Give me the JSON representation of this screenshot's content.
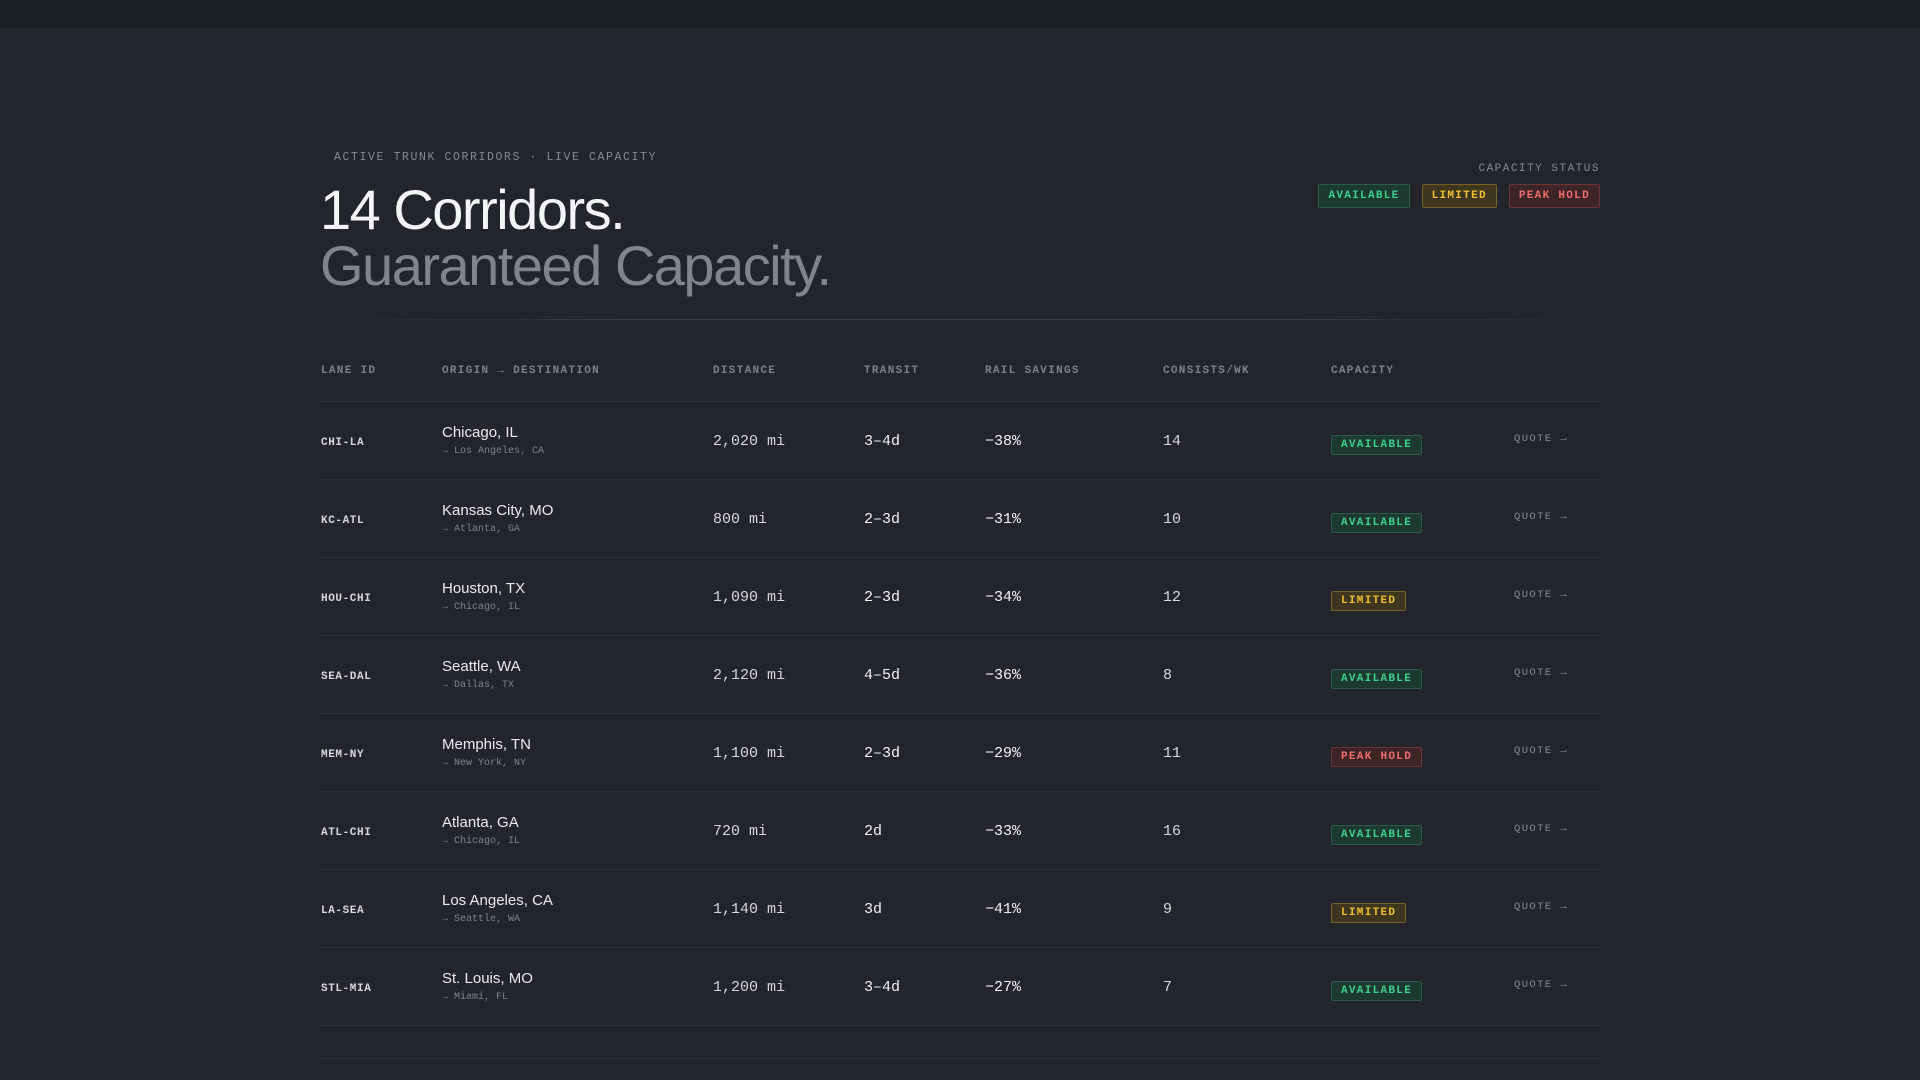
{
  "header": {
    "eyebrow": "ACTIVE TRUNK CORRIDORS · LIVE CAPACITY",
    "title_line1": "14 Corridors.",
    "title_line2": "Guaranteed Capacity.",
    "status_label": "CAPACITY STATUS",
    "legend": {
      "available": "AVAILABLE",
      "limited": "LIMITED",
      "peak_hold": "PEAK HOLD"
    }
  },
  "table": {
    "columns": {
      "lane_id": "LANE ID",
      "origin_destination": "ORIGIN → DESTINATION",
      "distance": "DISTANCE",
      "transit": "TRANSIT",
      "rail_savings": "RAIL SAVINGS",
      "consists": "CONSISTS/WK",
      "capacity": "CAPACITY"
    },
    "quote_label": "QUOTE →",
    "rows": [
      {
        "lane_id": "CHI-LA",
        "origin": "Chicago, IL",
        "destination": "→ Los Angeles, CA",
        "distance": "2,020 mi",
        "transit": "3–4d",
        "savings": "−38%",
        "consists": "14",
        "capacity": "AVAILABLE",
        "status": "available"
      },
      {
        "lane_id": "KC-ATL",
        "origin": "Kansas City, MO",
        "destination": "→ Atlanta, GA",
        "distance": "800 mi",
        "transit": "2–3d",
        "savings": "−31%",
        "consists": "10",
        "capacity": "AVAILABLE",
        "status": "available"
      },
      {
        "lane_id": "HOU-CHI",
        "origin": "Houston, TX",
        "destination": "→ Chicago, IL",
        "distance": "1,090 mi",
        "transit": "2–3d",
        "savings": "−34%",
        "consists": "12",
        "capacity": "LIMITED",
        "status": "limited"
      },
      {
        "lane_id": "SEA-DAL",
        "origin": "Seattle, WA",
        "destination": "→ Dallas, TX",
        "distance": "2,120 mi",
        "transit": "4–5d",
        "savings": "−36%",
        "consists": "8",
        "capacity": "AVAILABLE",
        "status": "available"
      },
      {
        "lane_id": "MEM-NY",
        "origin": "Memphis, TN",
        "destination": "→ New York, NY",
        "distance": "1,100 mi",
        "transit": "2–3d",
        "savings": "−29%",
        "consists": "11",
        "capacity": "PEAK HOLD",
        "status": "peak"
      },
      {
        "lane_id": "ATL-CHI",
        "origin": "Atlanta, GA",
        "destination": "→ Chicago, IL",
        "distance": "720 mi",
        "transit": "2d",
        "savings": "−33%",
        "consists": "16",
        "capacity": "AVAILABLE",
        "status": "available"
      },
      {
        "lane_id": "LA-SEA",
        "origin": "Los Angeles, CA",
        "destination": "→ Seattle, WA",
        "distance": "1,140 mi",
        "transit": "3d",
        "savings": "−41%",
        "consists": "9",
        "capacity": "LIMITED",
        "status": "limited"
      },
      {
        "lane_id": "STL-MIA",
        "origin": "St. Louis, MO",
        "destination": "→ Miami, FL",
        "distance": "1,200 mi",
        "transit": "3–4d",
        "savings": "−27%",
        "consists": "7",
        "capacity": "AVAILABLE",
        "status": "available"
      }
    ]
  },
  "colors": {
    "background": "#22262c",
    "available": "#3fcf8e",
    "limited": "#f2bf33",
    "peak_hold": "#f26d6d"
  }
}
